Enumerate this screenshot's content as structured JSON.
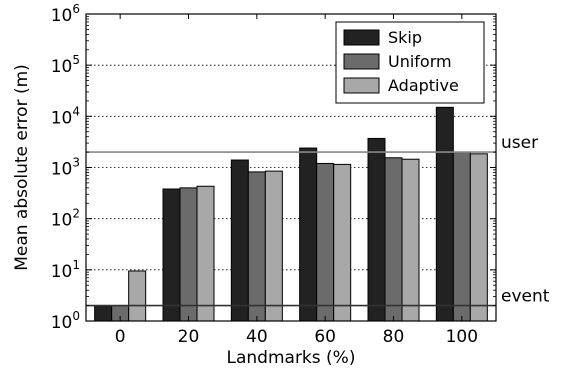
{
  "chart_data": {
    "type": "bar",
    "title": "",
    "xlabel": "Landmarks (%)",
    "ylabel": "Mean absolute error (m)",
    "yscale": "log",
    "ylim": [
      1,
      1000000
    ],
    "grid": "horizontal dotted at decades",
    "categories": [
      "0",
      "20",
      "40",
      "60",
      "80",
      "100"
    ],
    "series": [
      {
        "name": "Skip",
        "color": "#222222",
        "values": [
          2,
          380,
          1400,
          2400,
          3700,
          15000
        ]
      },
      {
        "name": "Uniform",
        "color": "#6b6b6b",
        "values": [
          2,
          400,
          820,
          1200,
          1550,
          2000
        ]
      },
      {
        "name": "Adaptive",
        "color": "#a8a8a8",
        "values": [
          9.5,
          430,
          850,
          1150,
          1450,
          1850
        ]
      }
    ],
    "reference_lines": [
      {
        "label": "user",
        "value": 2000
      },
      {
        "label": "event",
        "value": 2
      }
    ],
    "y_ticks": [
      {
        "base": "10",
        "exp": "0",
        "value": 1
      },
      {
        "base": "10",
        "exp": "1",
        "value": 10
      },
      {
        "base": "10",
        "exp": "2",
        "value": 100
      },
      {
        "base": "10",
        "exp": "3",
        "value": 1000
      },
      {
        "base": "10",
        "exp": "4",
        "value": 10000
      },
      {
        "base": "10",
        "exp": "5",
        "value": 100000
      },
      {
        "base": "10",
        "exp": "6",
        "value": 1000000
      }
    ],
    "legend_position": "top-right"
  }
}
